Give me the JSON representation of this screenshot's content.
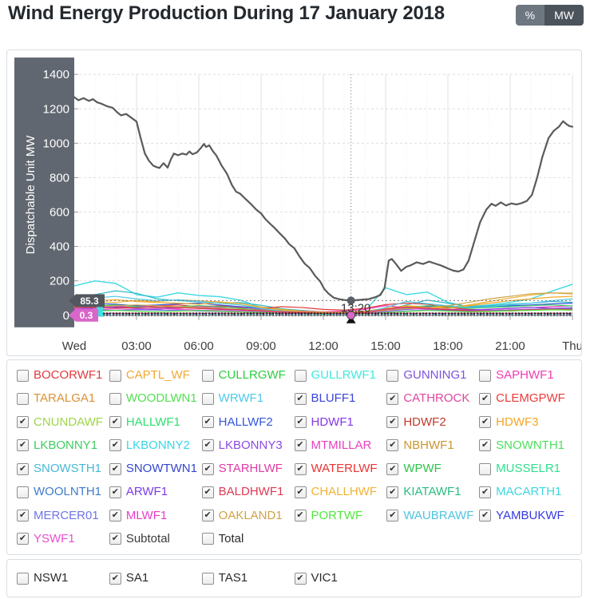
{
  "header": {
    "title": "Wind Energy Production During 17 January 2018",
    "unit_buttons": [
      {
        "label": "%",
        "selected": false
      },
      {
        "label": "MW",
        "selected": true
      }
    ]
  },
  "chart_data": {
    "type": "line",
    "title": "Wind Energy Production During 17 January 2018",
    "xlabel": "",
    "ylabel": "Dispatchable Unit MW",
    "ylim": [
      0,
      1400
    ],
    "y_ticks": [
      0,
      200,
      400,
      600,
      800,
      1000,
      1200,
      1400
    ],
    "x_ticks": [
      {
        "hour": 0,
        "label": "Wed"
      },
      {
        "hour": 3,
        "label": "03:00"
      },
      {
        "hour": 6,
        "label": "06:00"
      },
      {
        "hour": 9,
        "label": "09:00"
      },
      {
        "hour": 12,
        "label": "12:00"
      },
      {
        "hour": 15,
        "label": "15:00"
      },
      {
        "hour": 18,
        "label": "18:00"
      },
      {
        "hour": 21,
        "label": "21:00"
      },
      {
        "hour": 24,
        "label": "Thu"
      }
    ],
    "grid": true,
    "legend_position": "below",
    "axis_band_color": "#616770",
    "crosshair": {
      "hour": 13.333,
      "time_label": "13:20",
      "subtotal_value": 85.3,
      "subtotal_value_label": "85.3",
      "subtotal_tag_color": "#53575f",
      "minor_value": 0.3,
      "minor_value_label": "0.3",
      "minor_tag_color": "#d966c9",
      "hidden_tag_color": "#41e0e0"
    },
    "subtotal": {
      "name": "Subtotal",
      "color": "#5a5a5a",
      "points": [
        [
          0,
          1268
        ],
        [
          0.2,
          1250
        ],
        [
          0.45,
          1262
        ],
        [
          0.7,
          1246
        ],
        [
          0.9,
          1256
        ],
        [
          1.1,
          1238
        ],
        [
          1.3,
          1230
        ],
        [
          1.6,
          1214
        ],
        [
          1.85,
          1206
        ],
        [
          2.05,
          1182
        ],
        [
          2.25,
          1162
        ],
        [
          2.5,
          1170
        ],
        [
          2.75,
          1148
        ],
        [
          3.0,
          1126
        ],
        [
          3.2,
          1030
        ],
        [
          3.4,
          941
        ],
        [
          3.6,
          898
        ],
        [
          3.8,
          870
        ],
        [
          3.95,
          862
        ],
        [
          4.1,
          856
        ],
        [
          4.3,
          884
        ],
        [
          4.5,
          858
        ],
        [
          4.65,
          905
        ],
        [
          4.8,
          940
        ],
        [
          5.0,
          930
        ],
        [
          5.2,
          940
        ],
        [
          5.4,
          934
        ],
        [
          5.55,
          952
        ],
        [
          5.7,
          936
        ],
        [
          5.9,
          946
        ],
        [
          6.1,
          972
        ],
        [
          6.25,
          996
        ],
        [
          6.35,
          978
        ],
        [
          6.5,
          988
        ],
        [
          6.7,
          950
        ],
        [
          6.85,
          928
        ],
        [
          7.1,
          870
        ],
        [
          7.35,
          824
        ],
        [
          7.6,
          756
        ],
        [
          7.8,
          718
        ],
        [
          8.0,
          706
        ],
        [
          8.25,
          676
        ],
        [
          8.5,
          648
        ],
        [
          8.75,
          616
        ],
        [
          9.0,
          592
        ],
        [
          9.2,
          560
        ],
        [
          9.4,
          536
        ],
        [
          9.65,
          508
        ],
        [
          9.9,
          476
        ],
        [
          10.15,
          446
        ],
        [
          10.35,
          414
        ],
        [
          10.6,
          390
        ],
        [
          10.85,
          342
        ],
        [
          11.1,
          300
        ],
        [
          11.35,
          274
        ],
        [
          11.6,
          230
        ],
        [
          11.85,
          196
        ],
        [
          12.05,
          152
        ],
        [
          12.25,
          126
        ],
        [
          12.5,
          102
        ],
        [
          12.75,
          94
        ],
        [
          13.0,
          89
        ],
        [
          13.33,
          85.3
        ],
        [
          13.6,
          88
        ],
        [
          13.9,
          91
        ],
        [
          14.2,
          94
        ],
        [
          14.5,
          105
        ],
        [
          14.75,
          118
        ],
        [
          14.95,
          160
        ],
        [
          15.15,
          318
        ],
        [
          15.3,
          327
        ],
        [
          15.5,
          298
        ],
        [
          15.75,
          258
        ],
        [
          16.0,
          282
        ],
        [
          16.2,
          290
        ],
        [
          16.5,
          308
        ],
        [
          16.8,
          298
        ],
        [
          17.1,
          312
        ],
        [
          17.4,
          300
        ],
        [
          17.7,
          288
        ],
        [
          18.0,
          272
        ],
        [
          18.25,
          260
        ],
        [
          18.5,
          254
        ],
        [
          18.75,
          266
        ],
        [
          19.0,
          318
        ],
        [
          19.25,
          420
        ],
        [
          19.55,
          540
        ],
        [
          19.85,
          614
        ],
        [
          20.1,
          648
        ],
        [
          20.3,
          636
        ],
        [
          20.55,
          656
        ],
        [
          20.8,
          638
        ],
        [
          21.05,
          650
        ],
        [
          21.3,
          644
        ],
        [
          21.55,
          652
        ],
        [
          21.8,
          664
        ],
        [
          22.05,
          700
        ],
        [
          22.3,
          800
        ],
        [
          22.55,
          920
        ],
        [
          22.85,
          1030
        ],
        [
          23.1,
          1072
        ],
        [
          23.35,
          1096
        ],
        [
          23.55,
          1128
        ],
        [
          23.7,
          1112
        ],
        [
          23.85,
          1100
        ],
        [
          24,
          1096
        ]
      ]
    },
    "minor_series": [
      {
        "color": "#3fd9e3",
        "width": 1.4,
        "values": [
          170,
          200,
          185,
          120,
          105,
          130,
          115,
          108,
          88,
          45,
          28,
          22,
          18,
          16,
          24,
          160,
          120,
          135,
          75,
          50,
          60,
          75,
          95,
          140,
          180
        ]
      },
      {
        "color": "#2fb9c9",
        "width": 1.2,
        "values": [
          95,
          120,
          142,
          128,
          95,
          85,
          78,
          70,
          74,
          58,
          38,
          28,
          20,
          15,
          15,
          30,
          60,
          88,
          70,
          50,
          55,
          65,
          70,
          80,
          75
        ]
      },
      {
        "color": "#e8b02f",
        "width": 1.2,
        "values": [
          70,
          82,
          74,
          86,
          80,
          90,
          84,
          78,
          68,
          48,
          34,
          24,
          20,
          20,
          24,
          40,
          55,
          50,
          45,
          60,
          80,
          100,
          118,
          130,
          124
        ]
      },
      {
        "color": "#e33b3b",
        "width": 1.2,
        "values": [
          55,
          62,
          50,
          45,
          55,
          60,
          50,
          55,
          45,
          40,
          50,
          45,
          34,
          30,
          40,
          62,
          70,
          64,
          45,
          34,
          30,
          25,
          30,
          35,
          30
        ]
      },
      {
        "color": "#e83fc4",
        "width": 1.2,
        "values": [
          40,
          46,
          52,
          56,
          46,
          40,
          50,
          44,
          50,
          34,
          28,
          24,
          20,
          25,
          34,
          56,
          44,
          40,
          34,
          30,
          35,
          40,
          45,
          50,
          55
        ]
      },
      {
        "color": "#3356d9",
        "width": 1.2,
        "values": [
          60,
          70,
          64,
          55,
          60,
          66,
          70,
          60,
          50,
          40,
          30,
          20,
          15,
          15,
          20,
          30,
          40,
          50,
          55,
          45,
          50,
          55,
          60,
          66,
          70
        ]
      },
      {
        "color": "#8440e8",
        "width": 1.2,
        "values": [
          35,
          42,
          46,
          40,
          34,
          46,
          40,
          34,
          30,
          24,
          20,
          15,
          12,
          10,
          15,
          25,
          34,
          40,
          34,
          30,
          35,
          40,
          46,
          40,
          44
        ]
      },
      {
        "color": "#3fcc63",
        "width": 1.2,
        "values": [
          50,
          56,
          60,
          50,
          45,
          50,
          56,
          50,
          40,
          30,
          24,
          18,
          14,
          12,
          18,
          30,
          44,
          56,
          50,
          40,
          45,
          50,
          56,
          60,
          54
        ]
      },
      {
        "color": "#f6a623",
        "width": 1.2,
        "values": [
          80,
          86,
          90,
          80,
          74,
          70,
          64,
          74,
          60,
          44,
          30,
          22,
          18,
          15,
          20,
          34,
          50,
          46,
          40,
          55,
          70,
          85,
          95,
          105,
          110
        ]
      },
      {
        "color": "#4fc8e8",
        "width": 1.2,
        "values": [
          90,
          100,
          110,
          95,
          84,
          90,
          80,
          70,
          60,
          40,
          25,
          18,
          14,
          12,
          16,
          45,
          80,
          68,
          55,
          45,
          50,
          60,
          70,
          85,
          95
        ]
      },
      {
        "color": "#ea4fd2",
        "width": 1.2,
        "values": [
          30,
          36,
          30,
          35,
          40,
          34,
          30,
          28,
          24,
          20,
          18,
          14,
          10,
          8,
          12,
          30,
          40,
          34,
          30,
          25,
          28,
          32,
          35,
          38,
          40
        ]
      },
      {
        "color": "#cfa348",
        "width": 1.2,
        "values": [
          45,
          50,
          55,
          60,
          55,
          50,
          45,
          40,
          35,
          28,
          22,
          18,
          15,
          14,
          18,
          28,
          38,
          45,
          55,
          75,
          95,
          110,
          125,
          130,
          128
        ]
      },
      {
        "color": "#6f74e8",
        "width": 1.2,
        "values": [
          25,
          30,
          28,
          32,
          30,
          28,
          25,
          22,
          20,
          16,
          12,
          10,
          8,
          8,
          10,
          18,
          25,
          30,
          28,
          24,
          26,
          30,
          34,
          38,
          40
        ]
      },
      {
        "color": "#da3a55",
        "width": 1.2,
        "values": [
          48,
          44,
          40,
          44,
          48,
          44,
          40,
          36,
          32,
          26,
          20,
          16,
          12,
          12,
          16,
          36,
          48,
          40,
          32,
          26,
          24,
          28,
          32,
          36,
          34
        ]
      },
      {
        "color": "#52e83f",
        "width": 1.2,
        "values": [
          20,
          24,
          28,
          24,
          20,
          24,
          28,
          24,
          20,
          16,
          12,
          10,
          8,
          8,
          10,
          16,
          22,
          28,
          24,
          20,
          22,
          26,
          28,
          32,
          30
        ]
      },
      {
        "color": "#c23333",
        "width": 1.0,
        "const": 12
      },
      {
        "color": "#7a3be8",
        "width": 1.0,
        "dash": "3,3",
        "const": 8
      },
      {
        "color": "#222222",
        "width": 4.5,
        "dash": "2,2",
        "const": 5
      },
      {
        "color": "#3fd6e0",
        "width": 1.5,
        "dash": "4,3",
        "const": 2
      }
    ]
  },
  "legend": {
    "items": [
      {
        "label": "BOCORWF1",
        "color": "#e03a3e",
        "checked": false
      },
      {
        "label": "CAPTL_WF",
        "color": "#f0a832",
        "checked": false
      },
      {
        "label": "CULLRGWF",
        "color": "#2ecc40",
        "checked": false
      },
      {
        "label": "GULLRWF1",
        "color": "#41e8e0",
        "checked": false
      },
      {
        "label": "GUNNING1",
        "color": "#7b52e0",
        "checked": false
      },
      {
        "label": "SAPHWF1",
        "color": "#f03cb4",
        "checked": false
      },
      {
        "label": "TARALGA1",
        "color": "#d99136",
        "checked": false
      },
      {
        "label": "WOODLWN1",
        "color": "#52e052",
        "checked": false
      },
      {
        "label": "WRWF1",
        "color": "#4fc8e8",
        "checked": false
      },
      {
        "label": "BLUFF1",
        "color": "#3b44d6",
        "checked": true
      },
      {
        "label": "CATHROCK",
        "color": "#e0479e",
        "checked": true
      },
      {
        "label": "CLEMGPWF",
        "color": "#ed3b3b",
        "checked": true
      },
      {
        "label": "CNUNDAWF",
        "color": "#9ed64a",
        "checked": true
      },
      {
        "label": "HALLWF1",
        "color": "#2ee06e",
        "checked": true
      },
      {
        "label": "HALLWF2",
        "color": "#3356d9",
        "checked": true
      },
      {
        "label": "HDWF1",
        "color": "#8437e8",
        "checked": true
      },
      {
        "label": "HDWF2",
        "color": "#c0392b",
        "checked": true
      },
      {
        "label": "HDWF3",
        "color": "#f6a623",
        "checked": true
      },
      {
        "label": "LKBONNY1",
        "color": "#3fcc63",
        "checked": true
      },
      {
        "label": "LKBONNY2",
        "color": "#38d6e8",
        "checked": true
      },
      {
        "label": "LKBONNY3",
        "color": "#8a4be0",
        "checked": true
      },
      {
        "label": "MTMILLAR",
        "color": "#ea3fc0",
        "checked": true
      },
      {
        "label": "NBHWF1",
        "color": "#c9972f",
        "checked": true
      },
      {
        "label": "SNOWNTH1",
        "color": "#4ce05c",
        "checked": true
      },
      {
        "label": "SNOWSTH1",
        "color": "#49b8d6",
        "checked": true
      },
      {
        "label": "SNOWTWN1",
        "color": "#3347cc",
        "checked": true
      },
      {
        "label": "STARHLWF",
        "color": "#e03ba8",
        "checked": true
      },
      {
        "label": "WATERLWF",
        "color": "#ed3333",
        "checked": true
      },
      {
        "label": "WPWF",
        "color": "#2fc24a",
        "checked": true
      },
      {
        "label": "MUSSELR1",
        "color": "#2ee08e",
        "checked": false
      },
      {
        "label": "WOOLNTH1",
        "color": "#3f7ccc",
        "checked": false
      },
      {
        "label": "ARWF1",
        "color": "#7a3be8",
        "checked": true
      },
      {
        "label": "BALDHWF1",
        "color": "#da3a55",
        "checked": true
      },
      {
        "label": "CHALLHWF",
        "color": "#f2b233",
        "checked": true
      },
      {
        "label": "KIATAWF1",
        "color": "#27bd80",
        "checked": true
      },
      {
        "label": "MACARTH1",
        "color": "#3fd6e0",
        "checked": true
      },
      {
        "label": "MERCER01",
        "color": "#6f74e8",
        "checked": true
      },
      {
        "label": "MLWF1",
        "color": "#e83ccc",
        "checked": true
      },
      {
        "label": "OAKLAND1",
        "color": "#cfa348",
        "checked": true
      },
      {
        "label": "PORTWF",
        "color": "#52e83f",
        "checked": true
      },
      {
        "label": "WAUBRAWF",
        "color": "#4fc4de",
        "checked": true
      },
      {
        "label": "YAMBUKWF",
        "color": "#3639e0",
        "checked": true
      },
      {
        "label": "YSWF1",
        "color": "#ea4fd2",
        "checked": true
      },
      {
        "label": "Subtotal",
        "color": "#3a3a3a",
        "checked": true
      },
      {
        "label": "Total",
        "color": "#2b2b2b",
        "checked": false
      }
    ]
  },
  "regions": {
    "items": [
      {
        "label": "NSW1",
        "color": "#2b2b2b",
        "checked": false
      },
      {
        "label": "SA1",
        "color": "#2b2b2b",
        "checked": true
      },
      {
        "label": "TAS1",
        "color": "#2b2b2b",
        "checked": false
      },
      {
        "label": "VIC1",
        "color": "#2b2b2b",
        "checked": true
      }
    ]
  }
}
